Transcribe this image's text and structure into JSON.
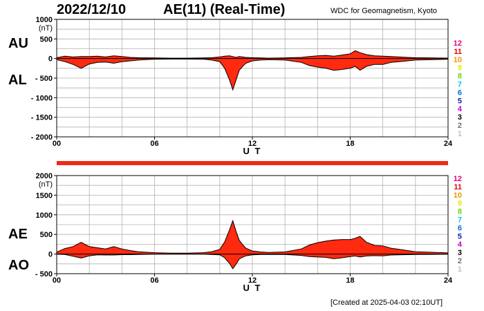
{
  "header": {
    "date": "2022/12/10",
    "title": "AE(11) (Real-Time)",
    "source": "WDC for Geomagnetism, Kyoto"
  },
  "footer": {
    "created": "[Created at 2025-04-03 02:10UT]"
  },
  "colors": {
    "fill": "#ff2a10",
    "axis": "#000000",
    "grid": "#b0b0b0",
    "bar": "#ee2a1a"
  },
  "hour_legend": [
    {
      "label": "12",
      "color": "#e6007e"
    },
    {
      "label": "11",
      "color": "#e60000"
    },
    {
      "label": "10",
      "color": "#f39800"
    },
    {
      "label": "9",
      "color": "#e8e800"
    },
    {
      "label": "8",
      "color": "#6fd400"
    },
    {
      "label": "7",
      "color": "#00c8e0"
    },
    {
      "label": "6",
      "color": "#0070e0"
    },
    {
      "label": "5",
      "color": "#1a1ab0"
    },
    {
      "label": "4",
      "color": "#c000d8"
    },
    {
      "label": "3",
      "color": "#000000"
    },
    {
      "label": "2",
      "color": "#707070"
    },
    {
      "label": "1",
      "color": "#c0c0c0"
    }
  ],
  "chart_data": [
    {
      "type": "area",
      "upper_label": "AU",
      "lower_label": "AL",
      "unit": "(nT)",
      "xlabel": "U T",
      "ylim": [
        -2000,
        1000
      ],
      "yticks": [
        1000,
        500,
        0,
        -500,
        -1000,
        -1500,
        -2000
      ],
      "yticklabels": [
        "1000",
        "500",
        "0",
        "- 500",
        "- 1000",
        "- 1500",
        "- 2000"
      ],
      "xticks": [
        0,
        6,
        12,
        18,
        24
      ],
      "xticklabels": [
        "00",
        "06",
        "12",
        "18",
        "24"
      ],
      "grid": true,
      "x": [
        0,
        0.5,
        1,
        1.5,
        2,
        2.5,
        3,
        3.5,
        4,
        4.5,
        5,
        6,
        7,
        8,
        9,
        9.5,
        10,
        10.3,
        10.6,
        10.8,
        11,
        11.2,
        11.4,
        11.6,
        12,
        12.5,
        13,
        14,
        15,
        15.5,
        16,
        16.5,
        17,
        17.5,
        18,
        18.3,
        18.6,
        19,
        19.5,
        20,
        20.5,
        21,
        21.5,
        22,
        23,
        24
      ],
      "series": [
        {
          "name": "AU",
          "values": [
            20,
            60,
            40,
            50,
            50,
            60,
            40,
            70,
            50,
            30,
            20,
            15,
            10,
            10,
            15,
            20,
            40,
            60,
            70,
            50,
            30,
            50,
            40,
            30,
            20,
            15,
            10,
            15,
            30,
            50,
            70,
            80,
            60,
            90,
            120,
            200,
            150,
            100,
            70,
            60,
            50,
            40,
            30,
            20,
            15,
            10
          ]
        },
        {
          "name": "AL",
          "values": [
            -30,
            -80,
            -150,
            -250,
            -140,
            -100,
            -90,
            -120,
            -80,
            -60,
            -40,
            -20,
            -15,
            -15,
            -20,
            -40,
            -80,
            -250,
            -550,
            -800,
            -550,
            -300,
            -200,
            -120,
            -60,
            -40,
            -30,
            -40,
            -100,
            -180,
            -220,
            -250,
            -300,
            -280,
            -250,
            -200,
            -300,
            -200,
            -150,
            -150,
            -100,
            -80,
            -60,
            -40,
            -30,
            -20
          ]
        }
      ]
    },
    {
      "type": "area",
      "upper_label": "AE",
      "lower_label": "AO",
      "unit": "(nT)",
      "xlabel": "U T",
      "ylim": [
        -500,
        2000
      ],
      "yticks": [
        2000,
        1500,
        1000,
        500,
        0,
        -500
      ],
      "yticklabels": [
        "2000",
        "1500",
        "1000",
        "500",
        "0",
        "- 500"
      ],
      "xticks": [
        0,
        6,
        12,
        18,
        24
      ],
      "xticklabels": [
        "00",
        "06",
        "12",
        "18",
        "24"
      ],
      "grid": true,
      "x": [
        0,
        0.5,
        1,
        1.5,
        2,
        2.5,
        3,
        3.5,
        4,
        4.5,
        5,
        6,
        7,
        8,
        9,
        9.5,
        10,
        10.3,
        10.6,
        10.8,
        11,
        11.2,
        11.4,
        11.6,
        12,
        12.5,
        13,
        14,
        15,
        15.5,
        16,
        16.5,
        17,
        17.5,
        18,
        18.3,
        18.6,
        19,
        19.5,
        20,
        20.5,
        21,
        21.5,
        22,
        23,
        24
      ],
      "series": [
        {
          "name": "AE",
          "values": [
            50,
            140,
            190,
            300,
            190,
            160,
            130,
            190,
            130,
            90,
            60,
            35,
            25,
            25,
            35,
            60,
            120,
            310,
            620,
            850,
            580,
            350,
            240,
            150,
            80,
            55,
            40,
            55,
            130,
            230,
            290,
            330,
            360,
            370,
            370,
            400,
            450,
            300,
            220,
            210,
            150,
            120,
            90,
            60,
            45,
            30
          ]
        },
        {
          "name": "AO",
          "values": [
            -5,
            -10,
            -55,
            -100,
            -45,
            -20,
            -25,
            -25,
            -15,
            -15,
            -10,
            -3,
            -3,
            -3,
            -3,
            -10,
            -20,
            -95,
            -240,
            -375,
            -260,
            -125,
            -80,
            -45,
            -20,
            -12,
            -10,
            -12,
            -35,
            -65,
            -75,
            -85,
            -120,
            -95,
            -65,
            -50,
            -75,
            -50,
            -40,
            -45,
            -25,
            -20,
            -15,
            -10,
            -8,
            -5
          ]
        }
      ]
    }
  ]
}
